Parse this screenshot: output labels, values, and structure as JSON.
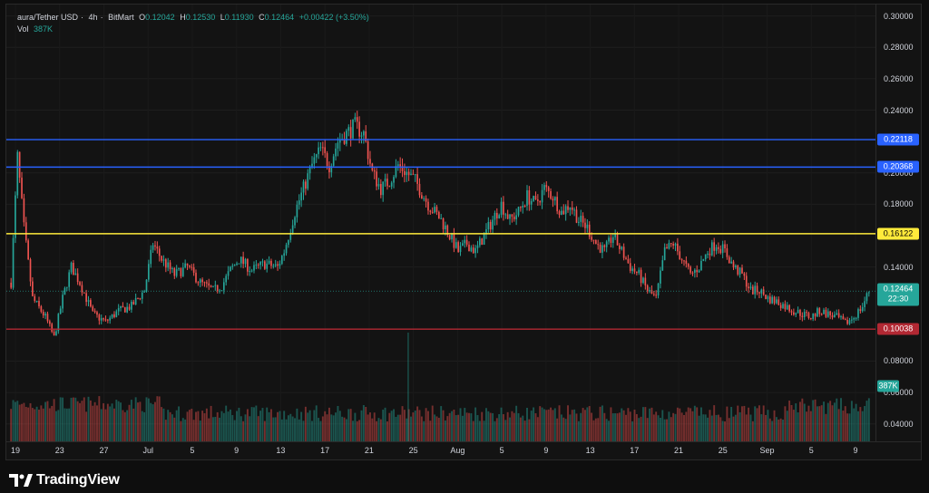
{
  "legend": {
    "symbol": "aura/Tether USD",
    "interval": "4h",
    "exchange": "BitMart",
    "open_label": "O",
    "open": "0.12042",
    "high_label": "H",
    "high": "0.12530",
    "low_label": "L",
    "low": "0.11930",
    "close_label": "C",
    "close": "0.12464",
    "change": "+0.00422 (+3.50%)",
    "vol_label": "Vol",
    "vol": "387K"
  },
  "price_axis": {
    "ticks": [
      "0.30000",
      "0.28000",
      "0.26000",
      "0.24000",
      "0.20000",
      "0.18000",
      "0.14000",
      "0.08000",
      "0.06000",
      "0.04000"
    ],
    "tick_values": [
      0.3,
      0.28,
      0.26,
      0.24,
      0.2,
      0.18,
      0.14,
      0.08,
      0.06,
      0.04
    ]
  },
  "time_axis": {
    "labels": [
      "19",
      "23",
      "27",
      "Jul",
      "5",
      "9",
      "13",
      "17",
      "21",
      "25",
      "Aug",
      "5",
      "9",
      "13",
      "17",
      "21",
      "25",
      "Sep",
      "5",
      "9"
    ]
  },
  "levels": [
    {
      "name": "level-blue-upper",
      "value": "0.22118",
      "price": 0.22118,
      "color": "#2962ff",
      "text_color": "#ffffff"
    },
    {
      "name": "level-blue-lower",
      "value": "0.20368",
      "price": 0.20368,
      "color": "#2962ff",
      "text_color": "#ffffff"
    },
    {
      "name": "level-yellow",
      "value": "0.16122",
      "price": 0.16122,
      "color": "#ffeb3b",
      "text_color": "#000000"
    },
    {
      "name": "level-red",
      "value": "0.10038",
      "price": 0.10038,
      "color": "#b22833",
      "text_color": "#ffffff"
    }
  ],
  "last_price": {
    "value": "0.12464",
    "countdown": "22:30",
    "price": 0.12464,
    "color": "#26a69a"
  },
  "volume_badge": {
    "value": "387K",
    "color": "#26a69a"
  },
  "colors": {
    "up": "#26a69a",
    "down": "#ef5350",
    "background": "#131313"
  },
  "branding": {
    "name": "TradingView"
  },
  "chart_data": {
    "type": "candlestick",
    "title": "aura/Tether USD · 4h · BitMart",
    "ylim": [
      0.03,
      0.305
    ],
    "x_labels": [
      "19",
      "23",
      "27",
      "Jul",
      "5",
      "9",
      "13",
      "17",
      "21",
      "25",
      "Aug",
      "5",
      "9",
      "13",
      "17",
      "21",
      "25",
      "Sep",
      "5",
      "9"
    ],
    "price_path": [
      [
        0,
        0.13
      ],
      [
        3,
        0.21
      ],
      [
        6,
        0.165
      ],
      [
        10,
        0.12
      ],
      [
        16,
        0.108
      ],
      [
        20,
        0.095
      ],
      [
        24,
        0.12
      ],
      [
        28,
        0.14
      ],
      [
        32,
        0.13
      ],
      [
        38,
        0.11
      ],
      [
        44,
        0.105
      ],
      [
        50,
        0.112
      ],
      [
        56,
        0.115
      ],
      [
        62,
        0.125
      ],
      [
        66,
        0.155
      ],
      [
        70,
        0.145
      ],
      [
        76,
        0.135
      ],
      [
        82,
        0.14
      ],
      [
        88,
        0.13
      ],
      [
        94,
        0.125
      ],
      [
        98,
        0.128
      ],
      [
        102,
        0.138
      ],
      [
        106,
        0.145
      ],
      [
        112,
        0.138
      ],
      [
        118,
        0.142
      ],
      [
        124,
        0.14
      ],
      [
        127,
        0.15
      ],
      [
        132,
        0.175
      ],
      [
        136,
        0.19
      ],
      [
        140,
        0.205
      ],
      [
        144,
        0.215
      ],
      [
        148,
        0.205
      ],
      [
        152,
        0.22
      ],
      [
        156,
        0.225
      ],
      [
        160,
        0.23
      ],
      [
        164,
        0.225
      ],
      [
        168,
        0.2
      ],
      [
        172,
        0.19
      ],
      [
        176,
        0.195
      ],
      [
        180,
        0.205
      ],
      [
        184,
        0.2
      ],
      [
        188,
        0.195
      ],
      [
        194,
        0.18
      ],
      [
        200,
        0.17
      ],
      [
        204,
        0.16
      ],
      [
        208,
        0.15
      ],
      [
        212,
        0.155
      ],
      [
        216,
        0.15
      ],
      [
        220,
        0.16
      ],
      [
        224,
        0.17
      ],
      [
        228,
        0.18
      ],
      [
        232,
        0.17
      ],
      [
        236,
        0.175
      ],
      [
        240,
        0.185
      ],
      [
        244,
        0.18
      ],
      [
        248,
        0.19
      ],
      [
        252,
        0.185
      ],
      [
        256,
        0.175
      ],
      [
        260,
        0.18
      ],
      [
        264,
        0.17
      ],
      [
        268,
        0.165
      ],
      [
        272,
        0.155
      ],
      [
        276,
        0.15
      ],
      [
        280,
        0.16
      ],
      [
        284,
        0.15
      ],
      [
        288,
        0.14
      ],
      [
        292,
        0.135
      ],
      [
        296,
        0.125
      ],
      [
        300,
        0.12
      ],
      [
        304,
        0.15
      ],
      [
        308,
        0.155
      ],
      [
        312,
        0.145
      ],
      [
        316,
        0.135
      ],
      [
        320,
        0.14
      ],
      [
        324,
        0.15
      ],
      [
        328,
        0.155
      ],
      [
        332,
        0.15
      ],
      [
        336,
        0.14
      ],
      [
        340,
        0.135
      ],
      [
        344,
        0.125
      ],
      [
        348,
        0.125
      ],
      [
        352,
        0.12
      ],
      [
        356,
        0.118
      ],
      [
        360,
        0.115
      ],
      [
        364,
        0.112
      ],
      [
        368,
        0.11
      ],
      [
        372,
        0.108
      ],
      [
        376,
        0.112
      ],
      [
        380,
        0.11
      ],
      [
        384,
        0.108
      ],
      [
        388,
        0.104
      ],
      [
        392,
        0.108
      ],
      [
        396,
        0.115
      ],
      [
        399,
        0.12464
      ]
    ]
  }
}
